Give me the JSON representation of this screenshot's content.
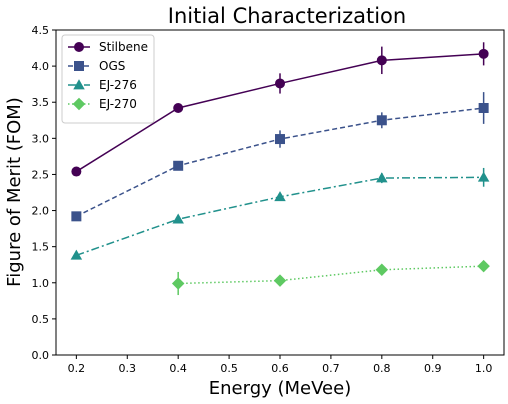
{
  "chart_data": {
    "type": "line",
    "title": "Initial Characterization",
    "xlabel": "Energy (MeVee)",
    "ylabel": "Figure of Merit (FOM)",
    "xlim": [
      0.16,
      1.04
    ],
    "ylim": [
      0.0,
      4.5
    ],
    "xticks": [
      0.2,
      0.3,
      0.4,
      0.5,
      0.6,
      0.7,
      0.8,
      0.9,
      1.0
    ],
    "xtick_labels": [
      "0.2",
      "0.3",
      "0.4",
      "0.5",
      "0.6",
      "0.7",
      "0.8",
      "0.9",
      "1.0"
    ],
    "yticks": [
      0.0,
      0.5,
      1.0,
      1.5,
      2.0,
      2.5,
      3.0,
      3.5,
      4.0,
      4.5
    ],
    "ytick_labels": [
      "0.0",
      "0.5",
      "1.0",
      "1.5",
      "2.0",
      "2.5",
      "3.0",
      "3.5",
      "4.0",
      "4.5"
    ],
    "grid": false,
    "legend_position": "top-left",
    "series": [
      {
        "name": "Stilbene",
        "color": "#440154",
        "marker": "circle",
        "linestyle": "solid",
        "x": [
          0.2,
          0.4,
          0.6,
          0.8,
          1.0
        ],
        "y": [
          2.54,
          3.42,
          3.76,
          4.08,
          4.17
        ],
        "yerr": [
          0.0,
          0.0,
          0.14,
          0.19,
          0.16
        ]
      },
      {
        "name": "OGS",
        "color": "#3b528b",
        "marker": "square",
        "linestyle": "dashed",
        "x": [
          0.2,
          0.4,
          0.6,
          0.8,
          1.0
        ],
        "y": [
          1.92,
          2.62,
          2.99,
          3.25,
          3.42
        ],
        "yerr": [
          0.0,
          0.0,
          0.12,
          0.11,
          0.22
        ]
      },
      {
        "name": "EJ-276",
        "color": "#21918c",
        "marker": "triangle",
        "linestyle": "dashdot",
        "x": [
          0.2,
          0.4,
          0.6,
          0.8,
          1.0
        ],
        "y": [
          1.38,
          1.88,
          2.19,
          2.45,
          2.46
        ],
        "yerr": [
          0.0,
          0.0,
          0.0,
          0.07,
          0.13
        ]
      },
      {
        "name": "EJ-270",
        "color": "#5ec962",
        "marker": "diamond",
        "linestyle": "dotted",
        "x": [
          0.4,
          0.6,
          0.8,
          1.0
        ],
        "y": [
          0.99,
          1.03,
          1.18,
          1.23
        ],
        "yerr": [
          0.16,
          0.0,
          0.0,
          0.0
        ]
      }
    ]
  }
}
